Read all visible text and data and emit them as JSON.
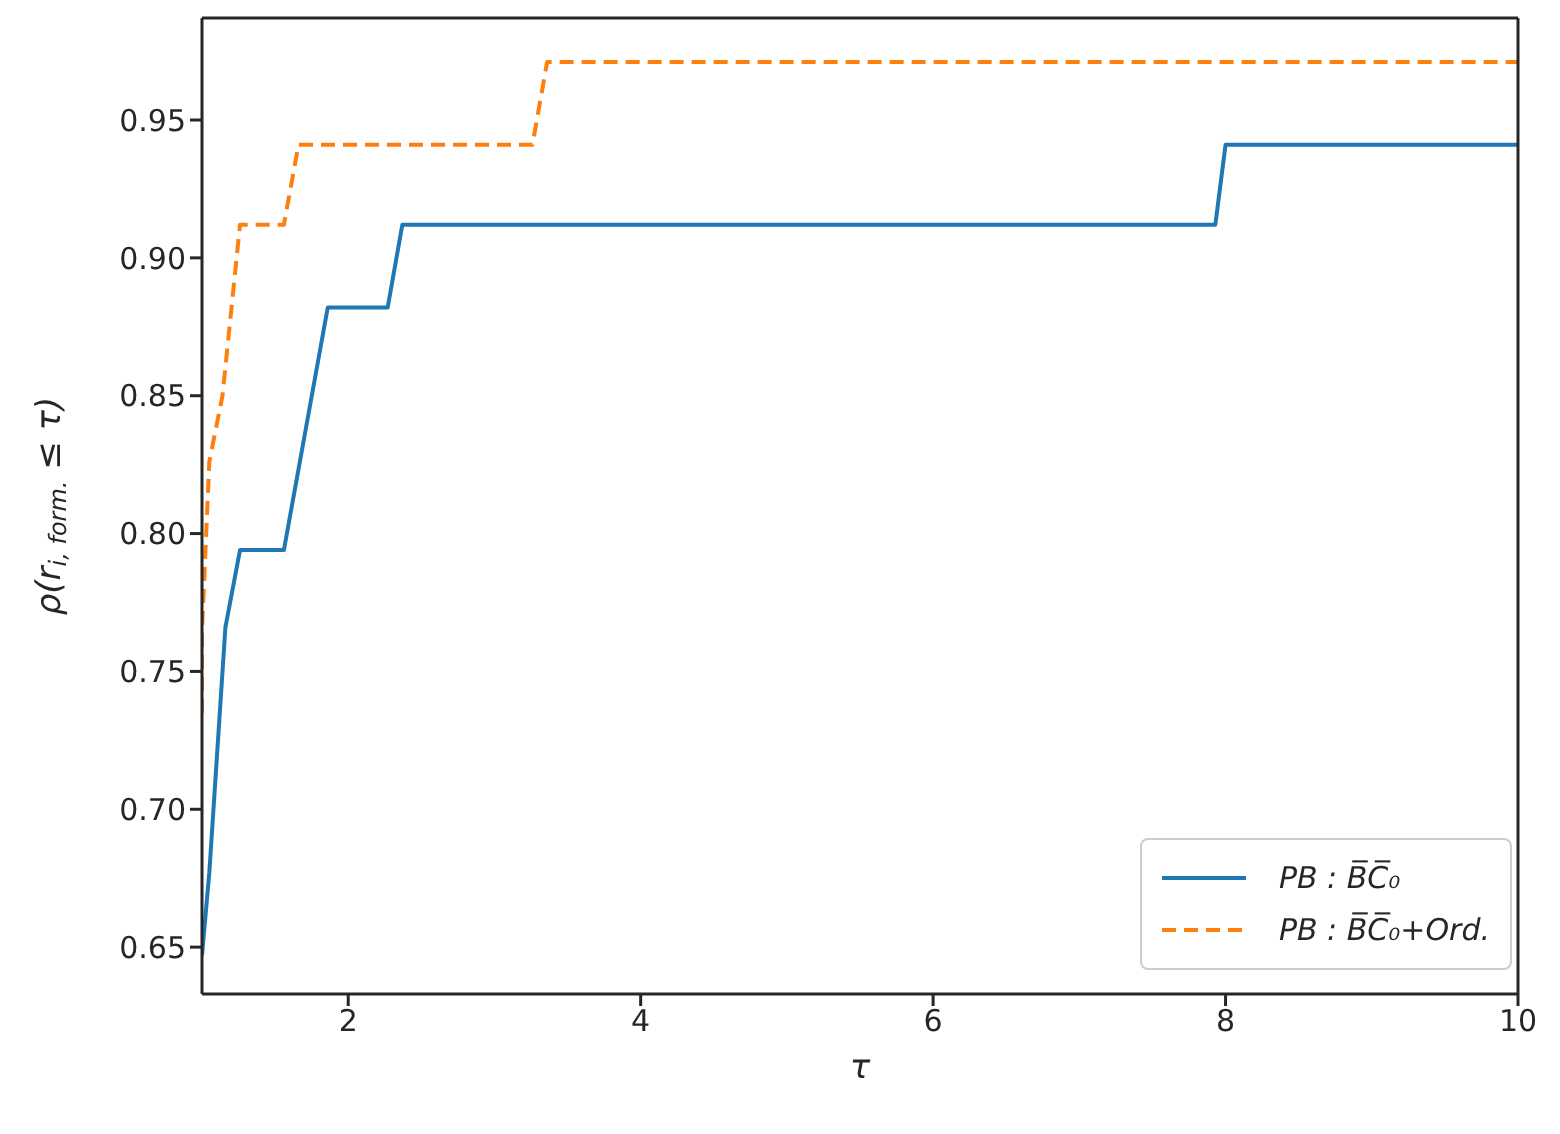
{
  "chart_data": {
    "type": "line",
    "xlabel": "τ",
    "ylabel": "ρ(r$_{i, form.}$ ≤ τ)",
    "xlim": [
      1,
      10
    ],
    "ylim": [
      0.633,
      0.987
    ],
    "xticks": [
      2,
      4,
      6,
      8,
      10
    ],
    "yticks": [
      0.65,
      {
        "value": 0.7,
        "label": "0.70"
      },
      0.75,
      {
        "value": 0.8,
        "label": "0.80"
      },
      0.85,
      {
        "value": 0.9,
        "label": "0.90"
      },
      0.95
    ],
    "legend": "bottom right",
    "marker": "none",
    "series": [
      {
        "name": "PB : B̅C̅₀",
        "color": "#1f77b4",
        "line_style": "solid",
        "x": [
          1,
          1.05,
          1.16,
          1.26,
          1.56,
          1.86,
          2.27,
          2.37,
          7.93,
          8.0,
          10
        ],
        "values": [
          0.647,
          0.677,
          0.766,
          0.794,
          0.794,
          0.882,
          0.882,
          0.912,
          0.912,
          0.941,
          0.941
        ]
      },
      {
        "name": "PB : B̅C̅₀+Ord.",
        "color": "#ff7f0e",
        "line_style": "dashed",
        "x": [
          1,
          1.0,
          1.05,
          1.14,
          1.26,
          1.56,
          1.66,
          3.26,
          3.36,
          10
        ],
        "values": [
          0.735,
          0.765,
          0.826,
          0.85,
          0.912,
          0.912,
          0.941,
          0.941,
          0.971,
          0.971
        ]
      }
    ]
  }
}
